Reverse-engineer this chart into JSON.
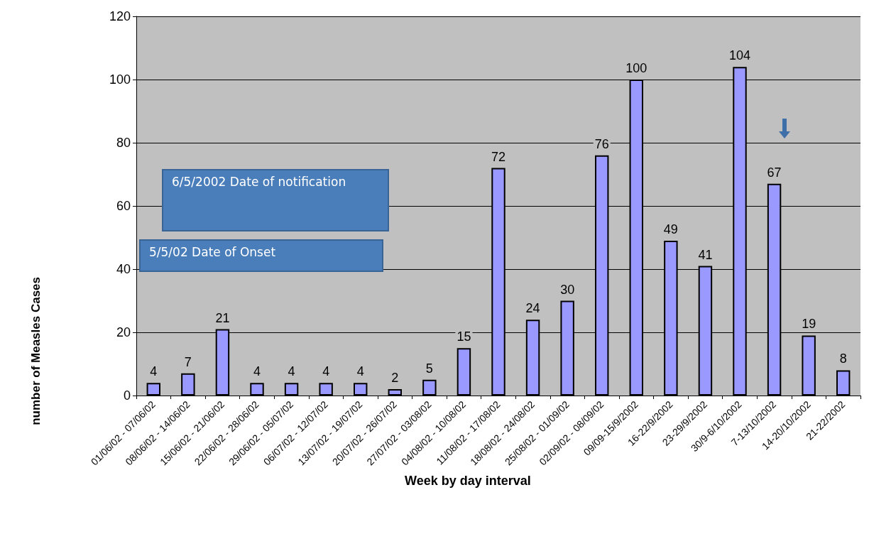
{
  "chart_data": {
    "type": "bar",
    "xlabel": "Week by day interval",
    "ylabel": "number of Measles Cases",
    "categories": [
      "01/06/02 - 07/06/02",
      "08/06/02 - 14/06/02",
      "15/06/02 - 21/06/02",
      "22/06/02 - 28/06/02",
      "29/06/02 - 05/07/02",
      "06/07/02 - 12/07/02",
      "13/07/02 - 19/07/02",
      "20/07/02 - 26/07/02",
      "27/07/02 - 03/08/02",
      "04/08/02 - 10/08/02",
      "11/08/02 - 17/08/02",
      "18/08/02 - 24/08/02",
      "25/08/02 - 01/09/02",
      "02/09/02 - 08/09/02",
      "09/09-15/9/2002",
      "16-22/9/2002",
      "23-29/9/2002",
      "30/9-6/10/2002",
      "7-13/10/2002",
      "14-20/10/2002",
      "21-22/2002"
    ],
    "values": [
      4,
      7,
      21,
      4,
      4,
      4,
      4,
      2,
      5,
      15,
      72,
      24,
      30,
      76,
      100,
      49,
      41,
      104,
      67,
      19,
      8
    ],
    "color": "#9999ff",
    "ylim": [
      0,
      120
    ],
    "yticks": [
      0,
      20,
      40,
      60,
      80,
      100,
      120
    ],
    "grid": "y",
    "data_labels": true,
    "annotations": [
      "6/5/2002 Date of notification",
      "5/5/02 Date of Onset"
    ]
  }
}
